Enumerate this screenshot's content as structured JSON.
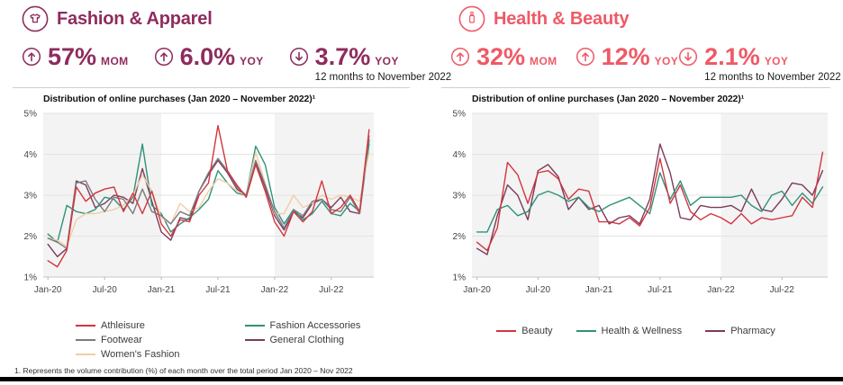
{
  "panels": [
    {
      "title": "Fashion & Apparel",
      "icon": "tshirt-icon",
      "accent": "#8e2c5e",
      "stats": [
        {
          "direction": "up",
          "value": "57%",
          "unit": "MOM"
        },
        {
          "direction": "up",
          "value": "6.0%",
          "unit": "YOY"
        },
        {
          "direction": "down",
          "value": "3.7%",
          "unit": "YOY",
          "caption": "12 months to November 2022"
        }
      ]
    },
    {
      "title": "Health & Beauty",
      "icon": "cosmetics-icon",
      "accent": "#ee5a67",
      "stats": [
        {
          "direction": "up",
          "value": "32%",
          "unit": "MOM"
        },
        {
          "direction": "up",
          "value": "12%",
          "unit": "YOY"
        },
        {
          "direction": "down",
          "value": "2.1%",
          "unit": "YOY",
          "caption": "12 months to November 2022"
        }
      ]
    }
  ],
  "chart_data": [
    {
      "type": "line",
      "title": "Distribution of online purchases (Jan 2020 – November 2022)¹",
      "ylim": [
        1,
        5
      ],
      "yticks": [
        "1%",
        "2%",
        "3%",
        "4%",
        "5%"
      ],
      "band_color": "#f3f3f3",
      "shaded_bands": [
        [
          0,
          12
        ],
        [
          24,
          35
        ]
      ],
      "xtick_idx": [
        0,
        6,
        12,
        18,
        24,
        30
      ],
      "x_tick_labels": [
        "Jan-20",
        "Jul-20",
        "Jan-21",
        "Jul-21",
        "Jan-22",
        "Jul-22"
      ],
      "x": [
        "Jan-20",
        "Feb-20",
        "Mar-20",
        "Apr-20",
        "May-20",
        "Jun-20",
        "Jul-20",
        "Aug-20",
        "Sep-20",
        "Oct-20",
        "Nov-20",
        "Dec-20",
        "Jan-21",
        "Feb-21",
        "Mar-21",
        "Apr-21",
        "May-21",
        "Jun-21",
        "Jul-21",
        "Aug-21",
        "Sep-21",
        "Oct-21",
        "Nov-21",
        "Dec-21",
        "Jan-22",
        "Feb-22",
        "Mar-22",
        "Apr-22",
        "May-22",
        "Jun-22",
        "Jul-22",
        "Aug-22",
        "Sep-22",
        "Oct-22",
        "Nov-22"
      ],
      "series": [
        {
          "name": "Athleisure",
          "color": "#d2353f",
          "values": [
            1.4,
            1.25,
            1.65,
            3.2,
            2.85,
            3.05,
            3.15,
            3.2,
            2.6,
            3.05,
            2.55,
            3.1,
            2.3,
            2.0,
            2.4,
            2.35,
            3.0,
            3.3,
            4.7,
            3.6,
            3.25,
            2.95,
            3.75,
            3.1,
            2.35,
            2.0,
            2.6,
            2.35,
            2.6,
            3.35,
            2.55,
            2.7,
            3.0,
            2.6,
            4.6
          ]
        },
        {
          "name": "Footwear",
          "color": "#7b7b80",
          "values": [
            1.95,
            1.85,
            1.7,
            3.3,
            3.35,
            2.9,
            2.6,
            2.95,
            2.9,
            2.55,
            3.15,
            2.6,
            2.5,
            2.3,
            2.6,
            2.5,
            3.1,
            3.55,
            3.9,
            3.6,
            3.2,
            3.0,
            3.85,
            3.25,
            2.6,
            2.2,
            2.65,
            2.5,
            2.85,
            2.9,
            2.65,
            2.6,
            2.95,
            2.55,
            4.45
          ]
        },
        {
          "name": "Women's Fashion",
          "color": "#f2cda8",
          "values": [
            1.95,
            1.9,
            1.75,
            2.4,
            2.55,
            2.55,
            2.6,
            2.65,
            2.75,
            3.0,
            3.5,
            3.1,
            2.45,
            2.3,
            2.8,
            2.6,
            2.7,
            3.1,
            3.4,
            3.3,
            3.1,
            3.0,
            4.05,
            3.3,
            2.55,
            2.55,
            3.0,
            2.7,
            2.8,
            3.0,
            2.9,
            3.0,
            2.95,
            2.85,
            4.05
          ]
        },
        {
          "name": "Fashion Accessories",
          "color": "#2f9179",
          "values": [
            2.05,
            1.85,
            2.75,
            2.6,
            2.55,
            2.65,
            2.95,
            2.9,
            2.65,
            2.95,
            4.25,
            2.75,
            2.55,
            2.1,
            2.3,
            2.45,
            2.65,
            2.9,
            3.6,
            3.3,
            3.05,
            3.0,
            4.2,
            3.75,
            2.7,
            2.3,
            2.65,
            2.4,
            2.55,
            2.85,
            2.55,
            2.5,
            2.8,
            2.6,
            4.25
          ]
        },
        {
          "name": "General Clothing",
          "color": "#7c3a5c",
          "values": [
            1.8,
            1.5,
            1.7,
            3.35,
            3.25,
            2.7,
            2.8,
            3.0,
            2.95,
            2.8,
            3.65,
            2.85,
            2.1,
            1.9,
            2.45,
            2.4,
            3.1,
            3.5,
            3.85,
            3.55,
            3.15,
            3.0,
            3.8,
            3.2,
            2.5,
            2.15,
            2.6,
            2.45,
            2.8,
            2.9,
            2.7,
            2.95,
            2.6,
            2.55,
            4.35
          ]
        }
      ]
    },
    {
      "type": "line",
      "title": "Distribution of online purchases (Jan 2020 – November 2022)¹",
      "ylim": [
        1,
        5
      ],
      "yticks": [
        "1%",
        "2%",
        "3%",
        "4%",
        "5%"
      ],
      "band_color": "#f3f3f3",
      "shaded_bands": [
        [
          0,
          12
        ],
        [
          24,
          35
        ]
      ],
      "xtick_idx": [
        0,
        6,
        12,
        18,
        24,
        30
      ],
      "x_tick_labels": [
        "Jan-20",
        "Jul-20",
        "Jan-21",
        "Jul-21",
        "Jan-22",
        "Jul-22"
      ],
      "x": [
        "Jan-20",
        "Feb-20",
        "Mar-20",
        "Apr-20",
        "May-20",
        "Jun-20",
        "Jul-20",
        "Aug-20",
        "Sep-20",
        "Oct-20",
        "Nov-20",
        "Dec-20",
        "Jan-21",
        "Feb-21",
        "Mar-21",
        "Apr-21",
        "May-21",
        "Jun-21",
        "Jul-21",
        "Aug-21",
        "Sep-21",
        "Oct-21",
        "Nov-21",
        "Dec-21",
        "Jan-22",
        "Feb-22",
        "Mar-22",
        "Apr-22",
        "May-22",
        "Jun-22",
        "Jul-22",
        "Aug-22",
        "Sep-22",
        "Oct-22",
        "Nov-22"
      ],
      "series": [
        {
          "name": "Beauty",
          "color": "#d2353f",
          "values": [
            1.85,
            1.65,
            2.2,
            3.8,
            3.5,
            2.8,
            3.55,
            3.6,
            3.4,
            2.9,
            3.15,
            3.1,
            2.35,
            2.35,
            2.3,
            2.45,
            2.25,
            2.7,
            3.9,
            2.8,
            3.25,
            2.6,
            2.4,
            2.55,
            2.45,
            2.3,
            2.55,
            2.3,
            2.45,
            2.4,
            2.45,
            2.5,
            2.95,
            2.7,
            4.05
          ]
        },
        {
          "name": "Health & Wellness",
          "color": "#2f9179",
          "values": [
            2.1,
            2.1,
            2.65,
            2.75,
            2.5,
            2.6,
            3.0,
            3.1,
            3.0,
            2.85,
            2.95,
            2.7,
            2.6,
            2.75,
            2.85,
            2.95,
            2.75,
            2.55,
            3.55,
            2.9,
            3.35,
            2.75,
            2.95,
            2.95,
            2.95,
            2.95,
            3.0,
            2.75,
            2.6,
            3.0,
            3.1,
            2.75,
            3.05,
            2.8,
            3.2
          ]
        },
        {
          "name": "Pharmacy",
          "color": "#7c3a5c",
          "values": [
            1.7,
            1.55,
            2.5,
            3.25,
            3.0,
            2.4,
            3.6,
            3.75,
            3.45,
            2.65,
            2.95,
            2.65,
            2.75,
            2.3,
            2.45,
            2.5,
            2.3,
            2.9,
            4.25,
            3.55,
            2.45,
            2.4,
            2.75,
            2.7,
            2.7,
            2.75,
            2.6,
            3.15,
            2.65,
            2.6,
            2.9,
            3.3,
            3.25,
            3.0,
            3.6
          ]
        }
      ]
    }
  ],
  "footnote": "1. Represents the volume contribution (%) of each month over the total period Jan 2020 – Nov 2022"
}
